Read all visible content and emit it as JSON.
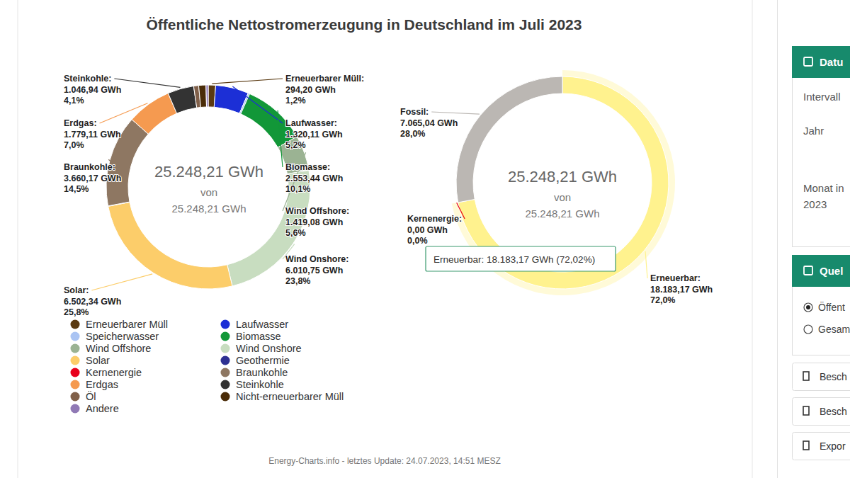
{
  "header": {
    "title": "Öffentliche Nettostromerzeugung in Deutschland im Juli 2023"
  },
  "chart_data": [
    {
      "type": "donut",
      "categories": [
        "Erneuerbarer Müll",
        "Laufwasser",
        "Speicherwasser",
        "Biomasse",
        "Wind Offshore",
        "Wind Onshore",
        "Solar",
        "Geothermie",
        "Kernenergie",
        "Braunkohle",
        "Erdgas",
        "Steinkohle",
        "Öl",
        "Nicht-erneuerbarer Müll",
        "Andere"
      ],
      "values": [
        294.2,
        1320.11,
        68.25,
        2553.44,
        1419.08,
        6010.75,
        6502.34,
        15,
        0,
        3660.17,
        1779.11,
        1046.94,
        200,
        290,
        88.82
      ],
      "colors": [
        "#5a3a12",
        "#1c2fd6",
        "#aac4f3",
        "#129738",
        "#9bb393",
        "#c8ddc0",
        "#fccd6a",
        "#2e3192",
        "#e8001c",
        "#8e7762",
        "#f59a50",
        "#333333",
        "#80604a",
        "#4a2c08",
        "#9079b5"
      ],
      "label_titles": [
        "Erneuerbarer Müll:",
        "Laufwasser:",
        null,
        "Biomasse:",
        "Wind Offshore:",
        "Wind Onshore:",
        "Solar:",
        null,
        null,
        "Braunkohle:",
        "Erdgas:",
        "Steinkohle:",
        null,
        null,
        null
      ],
      "value_labels": [
        "294,20 GWh",
        "1.320,11 GWh",
        null,
        "2.553,44 GWh",
        "1.419,08 GWh",
        "6.010,75 GWh",
        "6.502,34 GWh",
        null,
        null,
        "3.660,17 GWh",
        "1.779,11 GWh",
        "1.046,94 GWh",
        null,
        null,
        null
      ],
      "percent_labels": [
        "1,2%",
        "5,2%",
        null,
        "10,1%",
        "5,6%",
        "23,8%",
        "25,8%",
        null,
        null,
        "14,5%",
        "7,0%",
        "4,1%",
        null,
        null,
        null
      ],
      "center_labels": [
        "25.248,21 GWh",
        "von",
        "25.248,21 GWh"
      ],
      "data_labels": true,
      "legend": "bottom"
    },
    {
      "type": "donut",
      "categories": [
        "Erneuerbar",
        "Kernenergie",
        "Fossil"
      ],
      "values": [
        18183.17,
        0,
        7065.04
      ],
      "colors": [
        "#fff28e",
        "#e8001c",
        "#bbb7b3"
      ],
      "label_titles": [
        "Erneuerbar:",
        "Kernenergie:",
        "Fossil:"
      ],
      "value_labels": [
        "18.183,17 GWh",
        "0,00 GWh",
        "7.065,04 GWh"
      ],
      "percent_labels": [
        "72,0%",
        "0,0%",
        "28,0%"
      ],
      "center_labels": [
        "25.248,21 GWh",
        "von",
        "25.248,21 GWh"
      ],
      "tooltip": "Erneuerbar: 18.183,17 GWh (72,02%)",
      "data_labels": true
    }
  ],
  "sidebar": {
    "panels": [
      {
        "title": "Datu",
        "fields": [
          "Intervall",
          "Jahr",
          "Monat in",
          "2023"
        ]
      },
      {
        "title": "Quel",
        "options": [
          {
            "label": "Öffent",
            "checked": true
          },
          {
            "label": "Gesam",
            "checked": false
          }
        ]
      }
    ],
    "buttons": [
      "Besch",
      "Besch",
      "Expor"
    ]
  },
  "footer": "Energy-Charts.info - letztes Update: 24.07.2023, 14:51 MESZ"
}
